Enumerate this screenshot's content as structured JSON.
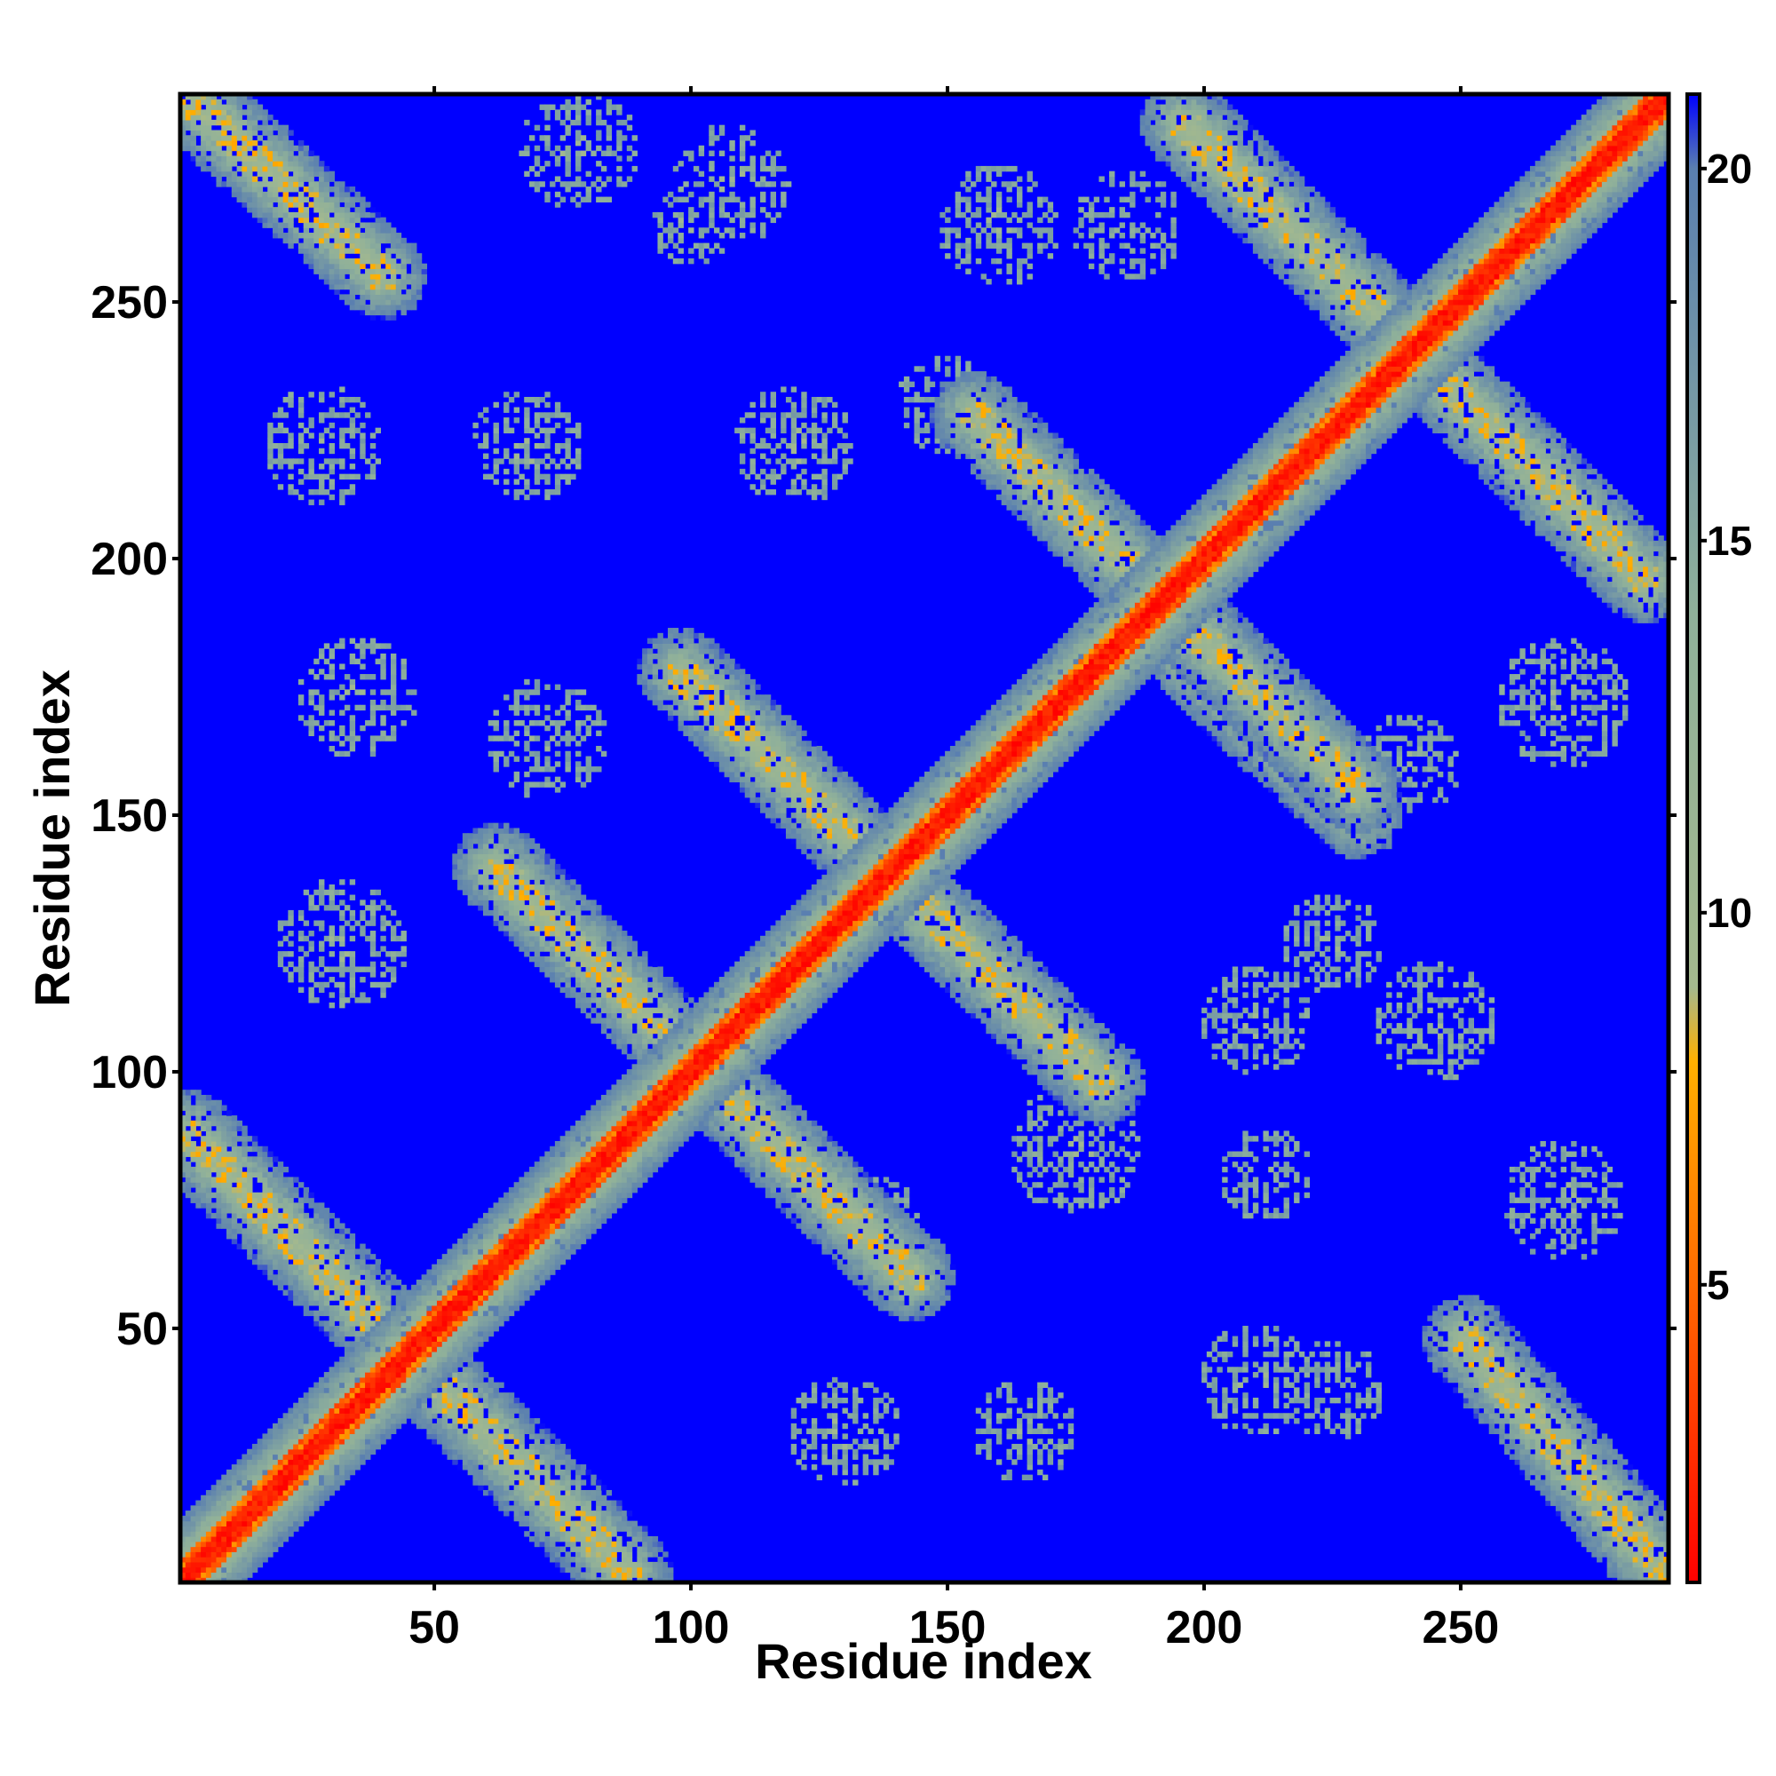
{
  "chart_data": {
    "type": "heatmap",
    "title": "",
    "xlabel": "Residue index",
    "ylabel": "Residue index",
    "xlim": [
      1,
      290
    ],
    "ylim": [
      1,
      290
    ],
    "xticks": [
      50,
      100,
      150,
      200,
      250
    ],
    "yticks": [
      50,
      100,
      150,
      200,
      250
    ],
    "colorbar": {
      "ticks": [
        5,
        10,
        15,
        20
      ],
      "range": [
        1,
        21
      ],
      "stops": [
        {
          "value": 1,
          "color": "#ff0000"
        },
        {
          "value": 5,
          "color": "#ff6a00"
        },
        {
          "value": 8,
          "color": "#ffb000"
        },
        {
          "value": 9,
          "color": "#a4b98e"
        },
        {
          "value": 14,
          "color": "#8fb09a"
        },
        {
          "value": 20,
          "color": "#5a7fb0"
        },
        {
          "value": 21,
          "color": "#0000ff"
        }
      ]
    },
    "background_value": 21,
    "diagonal": {
      "halfwidth_residues": 12
    },
    "contact_bands": [
      {
        "type": "anti",
        "from": [
          2,
          290
        ],
        "to": [
          40,
          255
        ]
      },
      {
        "type": "anti",
        "from": [
          2,
          88
        ],
        "to": [
          88,
          2
        ]
      },
      {
        "type": "anti",
        "from": [
          62,
          140
        ],
        "to": [
          143,
          60
        ]
      },
      {
        "type": "anti",
        "from": [
          98,
          178
        ],
        "to": [
          180,
          98
        ]
      },
      {
        "type": "anti",
        "from": [
          155,
          228
        ],
        "to": [
          230,
          155
        ]
      },
      {
        "type": "anti",
        "from": [
          196,
          285
        ],
        "to": [
          286,
          196
        ]
      },
      {
        "type": "anti",
        "from": [
          198,
          180
        ],
        "to": [
          230,
          150
        ]
      },
      {
        "type": "anti",
        "from": [
          251,
          48
        ],
        "to": [
          290,
          2
        ]
      }
    ],
    "contact_patches": [
      {
        "center": [
          28,
          222
        ],
        "radius": 12
      },
      {
        "center": [
          68,
          222
        ],
        "radius": 11
      },
      {
        "center": [
          78,
          280
        ],
        "radius": 12
      },
      {
        "center": [
          120,
          222
        ],
        "radius": 12
      },
      {
        "center": [
          108,
          273
        ],
        "radius": 12
      },
      {
        "center": [
          160,
          265
        ],
        "radius": 12
      },
      {
        "center": [
          150,
          230
        ],
        "radius": 10
      },
      {
        "center": [
          32,
          125
        ],
        "radius": 13
      },
      {
        "center": [
          35,
          173
        ],
        "radius": 12
      },
      {
        "center": [
          72,
          165
        ],
        "radius": 12
      },
      {
        "center": [
          175,
          85
        ],
        "radius": 13
      },
      {
        "center": [
          130,
          30
        ],
        "radius": 11
      },
      {
        "center": [
          165,
          30
        ],
        "radius": 10
      },
      {
        "center": [
          135,
          70
        ],
        "radius": 10
      },
      {
        "center": [
          210,
          40
        ],
        "radius": 11
      },
      {
        "center": [
          225,
          38
        ],
        "radius": 10
      },
      {
        "center": [
          210,
          110
        ],
        "radius": 11
      },
      {
        "center": [
          245,
          110
        ],
        "radius": 12
      },
      {
        "center": [
          270,
          75
        ],
        "radius": 12
      },
      {
        "center": [
          225,
          125
        ],
        "radius": 10
      },
      {
        "center": [
          212,
          80
        ],
        "radius": 9
      },
      {
        "center": [
          270,
          172
        ],
        "radius": 13
      },
      {
        "center": [
          240,
          160
        ],
        "radius": 10
      },
      {
        "center": [
          185,
          265
        ],
        "radius": 11
      },
      {
        "center": [
          100,
          265
        ],
        "radius": 8
      }
    ]
  }
}
